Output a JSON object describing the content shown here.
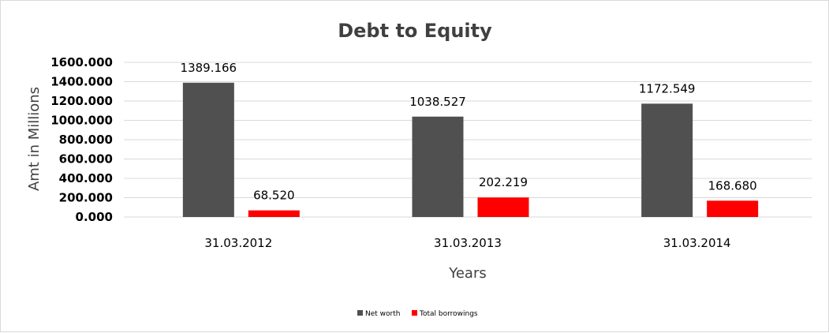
{
  "chart_data": {
    "type": "bar",
    "title": "Debt to Equity",
    "xlabel": "Years",
    "ylabel": "Amt in Millions",
    "categories": [
      "31.03.2012",
      "31.03.2013",
      "31.03.2014"
    ],
    "series": [
      {
        "name": "Net worth",
        "color": "#505050",
        "values": [
          1389.166,
          1038.527,
          1172.549
        ],
        "labels": [
          "1389.166",
          "1038.527",
          "1172.549"
        ]
      },
      {
        "name": "Total borrowings",
        "color": "#ff0000",
        "values": [
          68.52,
          202.219,
          168.68
        ],
        "labels": [
          "68.520",
          "202.219",
          "168.680"
        ]
      }
    ],
    "ylim": [
      0,
      1600
    ],
    "yticks": [
      0,
      200,
      400,
      600,
      800,
      1000,
      1200,
      1400,
      1600
    ],
    "ytick_labels": [
      "0.000",
      "200.000",
      "400.000",
      "600.000",
      "800.000",
      "1000.000",
      "1200.000",
      "1400.000",
      "1600.000"
    ],
    "grid": true,
    "legend_position": "bottom",
    "gridline_color": "#d9d9d9"
  }
}
